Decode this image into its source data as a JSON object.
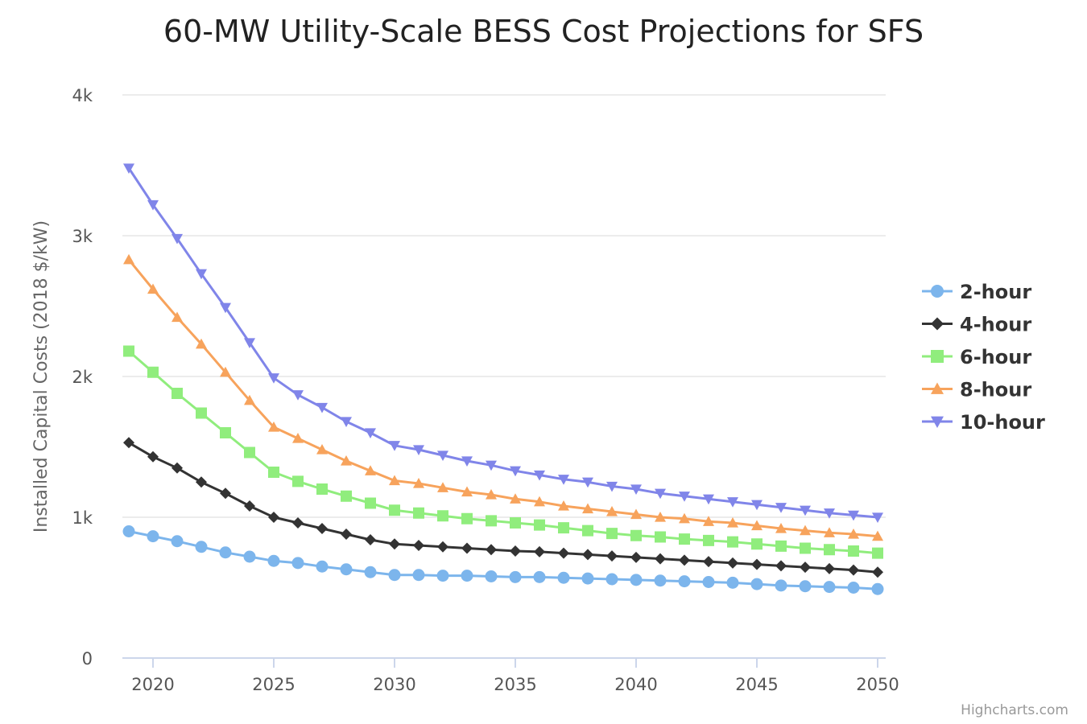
{
  "chart_data": {
    "type": "line",
    "title": "60-MW Utility-Scale BESS Cost Projections for SFS",
    "xlabel": "",
    "ylabel": "Installed Capital Costs (2018 $/kW)",
    "xlim": [
      2019,
      2050
    ],
    "ylim": [
      0,
      4000
    ],
    "x_ticks": [
      2020,
      2025,
      2030,
      2035,
      2040,
      2045,
      2050
    ],
    "y_ticks": [
      0,
      1000,
      2000,
      3000,
      4000
    ],
    "y_tick_labels": [
      "0",
      "1k",
      "2k",
      "3k",
      "4k"
    ],
    "x": [
      2019,
      2020,
      2021,
      2022,
      2023,
      2024,
      2025,
      2026,
      2027,
      2028,
      2029,
      2030,
      2031,
      2032,
      2033,
      2034,
      2035,
      2036,
      2037,
      2038,
      2039,
      2040,
      2041,
      2042,
      2043,
      2044,
      2045,
      2046,
      2047,
      2048,
      2049,
      2050
    ],
    "grid": true,
    "legend_position": "right",
    "credit": "Highcharts.com",
    "series": [
      {
        "name": "2-hour",
        "color": "#7cb5ec",
        "marker": "circle",
        "values": [
          900,
          865,
          830,
          790,
          750,
          720,
          690,
          675,
          650,
          630,
          610,
          590,
          590,
          585,
          585,
          580,
          575,
          575,
          570,
          565,
          560,
          555,
          550,
          545,
          540,
          535,
          525,
          515,
          510,
          505,
          500,
          490
        ]
      },
      {
        "name": "4-hour",
        "color": "#333333",
        "marker": "diamond",
        "values": [
          1530,
          1430,
          1350,
          1250,
          1170,
          1080,
          1000,
          960,
          920,
          880,
          840,
          810,
          800,
          790,
          780,
          770,
          760,
          755,
          745,
          735,
          725,
          715,
          705,
          695,
          685,
          675,
          665,
          655,
          645,
          635,
          625,
          610
        ]
      },
      {
        "name": "6-hour",
        "color": "#90ed7d",
        "marker": "square",
        "values": [
          2180,
          2030,
          1880,
          1740,
          1600,
          1460,
          1320,
          1255,
          1200,
          1150,
          1100,
          1050,
          1030,
          1010,
          990,
          975,
          960,
          945,
          925,
          905,
          885,
          870,
          860,
          845,
          835,
          825,
          810,
          795,
          780,
          770,
          760,
          745
        ]
      },
      {
        "name": "8-hour",
        "color": "#f7a35c",
        "marker": "triangle",
        "values": [
          2830,
          2620,
          2420,
          2230,
          2030,
          1830,
          1640,
          1560,
          1480,
          1400,
          1330,
          1260,
          1240,
          1210,
          1180,
          1160,
          1130,
          1110,
          1080,
          1060,
          1040,
          1020,
          1000,
          990,
          970,
          960,
          940,
          920,
          905,
          890,
          880,
          865
        ]
      },
      {
        "name": "10-hour",
        "color": "#8085e9",
        "marker": "triangle-down",
        "values": [
          3480,
          3220,
          2980,
          2730,
          2490,
          2240,
          1990,
          1870,
          1780,
          1680,
          1600,
          1510,
          1480,
          1440,
          1400,
          1370,
          1330,
          1300,
          1270,
          1250,
          1220,
          1200,
          1170,
          1150,
          1130,
          1110,
          1090,
          1070,
          1050,
          1030,
          1015,
          1000
        ]
      }
    ]
  }
}
